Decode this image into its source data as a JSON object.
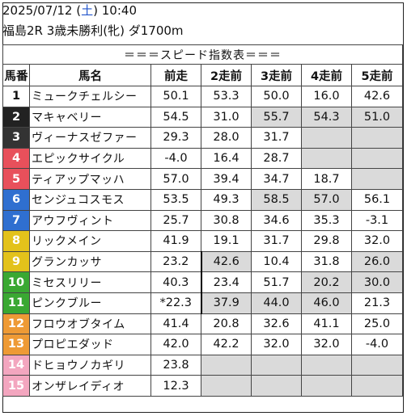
{
  "race": {
    "date": "2025/07/12",
    "day_open": "(",
    "day": "土",
    "day_close": ")",
    "time": "10:40",
    "info": "福島2R 3歳未勝利(牝) ダ1700m"
  },
  "table": {
    "title": "＝＝＝スピード指数表＝＝＝",
    "headers": [
      "馬番",
      "馬名",
      "前走",
      "2走前",
      "3走前",
      "4走前",
      "5走前"
    ],
    "rows": [
      {
        "no": "1",
        "name": "ミュークチェルシー",
        "v": [
          "50.1",
          "53.3",
          "50.0",
          "16.0",
          "42.6"
        ],
        "bg": "#ffffff",
        "fg": "#111111",
        "shade": [
          false,
          false,
          false,
          false,
          false
        ]
      },
      {
        "no": "2",
        "name": "マキャベリー",
        "v": [
          "54.5",
          "31.0",
          "55.7",
          "54.3",
          "51.0"
        ],
        "bg": "#222222",
        "fg": "#ffffff",
        "shade": [
          false,
          false,
          true,
          true,
          true
        ]
      },
      {
        "no": "3",
        "name": "ヴィーナスゼファー",
        "v": [
          "29.3",
          "28.0",
          "31.7",
          "",
          ""
        ],
        "bg": "#333333",
        "fg": "#ffffff",
        "shade": [
          false,
          false,
          false,
          true,
          true
        ]
      },
      {
        "no": "4",
        "name": "エピックサイクル",
        "v": [
          "-4.0",
          "16.4",
          "28.7",
          "",
          ""
        ],
        "bg": "#e8505b",
        "fg": "#ffffff",
        "shade": [
          false,
          false,
          false,
          true,
          true
        ]
      },
      {
        "no": "5",
        "name": "ティアップマッハ",
        "v": [
          "57.0",
          "39.4",
          "34.7",
          "18.7",
          ""
        ],
        "bg": "#e8505b",
        "fg": "#ffffff",
        "shade": [
          false,
          false,
          false,
          false,
          true
        ]
      },
      {
        "no": "6",
        "name": "センジュコスモス",
        "v": [
          "53.5",
          "49.3",
          "58.5",
          "57.0",
          "56.1"
        ],
        "bg": "#2f6fd0",
        "fg": "#ffffff",
        "shade": [
          false,
          false,
          true,
          true,
          false
        ]
      },
      {
        "no": "7",
        "name": "アウフヴィント",
        "v": [
          "25.7",
          "30.8",
          "34.6",
          "35.3",
          "-3.1"
        ],
        "bg": "#2f6fd0",
        "fg": "#ffffff",
        "shade": [
          false,
          false,
          false,
          false,
          false
        ]
      },
      {
        "no": "8",
        "name": "リックメイン",
        "v": [
          "41.9",
          "19.1",
          "31.7",
          "29.8",
          "32.0"
        ],
        "bg": "#e3c21b",
        "fg": "#ffffff",
        "shade": [
          false,
          false,
          false,
          false,
          false
        ]
      },
      {
        "no": "9",
        "name": "グランカッサ",
        "v": [
          "23.2",
          "42.6",
          "10.4",
          "31.8",
          "26.0"
        ],
        "bg": "#e3c21b",
        "fg": "#ffffff",
        "shade": [
          false,
          true,
          false,
          false,
          true
        ]
      },
      {
        "no": "10",
        "name": "ミセスリリー",
        "v": [
          "40.3",
          "23.4",
          "51.7",
          "20.2",
          "30.0"
        ],
        "bg": "#3aa832",
        "fg": "#ffffff",
        "shade": [
          false,
          false,
          false,
          true,
          true
        ]
      },
      {
        "no": "11",
        "name": "ピンクブルー",
        "v": [
          "*22.3",
          "37.9",
          "44.0",
          "46.0",
          "21.3"
        ],
        "bg": "#3aa832",
        "fg": "#ffffff",
        "shade": [
          false,
          true,
          true,
          true,
          false
        ]
      },
      {
        "no": "12",
        "name": "フロウオブタイム",
        "v": [
          "41.4",
          "20.8",
          "32.6",
          "41.1",
          "25.0"
        ],
        "bg": "#ee9a35",
        "fg": "#ffffff",
        "shade": [
          false,
          false,
          false,
          false,
          false
        ]
      },
      {
        "no": "13",
        "name": "プロピエダッド",
        "v": [
          "42.0",
          "42.2",
          "32.0",
          "32.0",
          "-4.0"
        ],
        "bg": "#ee9a35",
        "fg": "#ffffff",
        "shade": [
          false,
          false,
          false,
          false,
          false
        ]
      },
      {
        "no": "14",
        "name": "ドヒョウノカギリ",
        "v": [
          "23.8",
          "",
          "",
          "",
          ""
        ],
        "bg": "#f3a6bf",
        "fg": "#ffffff",
        "shade": [
          false,
          true,
          true,
          true,
          true
        ]
      },
      {
        "no": "15",
        "name": "オンザレイディオ",
        "v": [
          "12.3",
          "",
          "",
          "",
          ""
        ],
        "bg": "#f3a6bf",
        "fg": "#ffffff",
        "shade": [
          false,
          true,
          true,
          true,
          true
        ]
      }
    ]
  }
}
